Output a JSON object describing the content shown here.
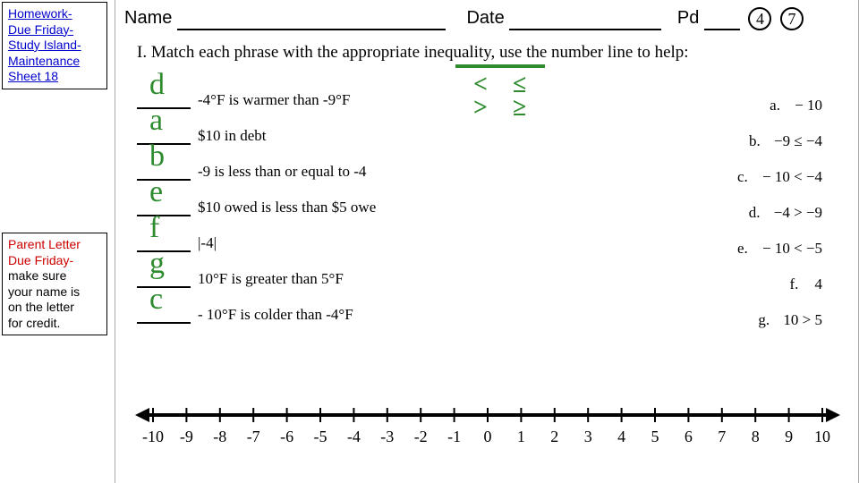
{
  "notes": {
    "top": {
      "line1": "Homework-",
      "line2": "Due Friday-",
      "line3": "Study Island-",
      "line4": "Maintenance",
      "line5": "Sheet 18"
    },
    "bottom": {
      "line1": "Parent Letter",
      "line2": "Due Friday-",
      "line3": "make sure",
      "line4": "your name is",
      "line5": "on the letter",
      "line6": "for credit."
    }
  },
  "header": {
    "name_lbl": "Name",
    "date_lbl": "Date",
    "pd_lbl": "Pd",
    "circ1": "4",
    "circ2": "7"
  },
  "instruction": "I.   Match each phrase with the appropriate inequality, use the number line to help:",
  "green_symbols": {
    "col1_a": "<",
    "col1_b": ">",
    "col2_a": "≤",
    "col2_b": "≥"
  },
  "left_items": [
    {
      "hand": "d",
      "text": "-4°F is warmer than -9°F"
    },
    {
      "hand": "a",
      "text": "$10 in debt"
    },
    {
      "hand": "b",
      "text": "-9 is less than or equal to -4"
    },
    {
      "hand": "e",
      "text": "$10 owed is less than $5 owe"
    },
    {
      "hand": "f",
      "text": "|-4|"
    },
    {
      "hand": "g",
      "text": "10°F is greater than 5°F"
    },
    {
      "hand": "c",
      "text": "- 10°F is colder than -4°F"
    }
  ],
  "right_items": [
    {
      "key": "a.",
      "val": "− 10"
    },
    {
      "key": "b.",
      "val": "−9 ≤ −4"
    },
    {
      "key": "c.",
      "val": "− 10 < −4"
    },
    {
      "key": "d.",
      "val": "−4 > −9"
    },
    {
      "key": "e.",
      "val": "− 10 < −5"
    },
    {
      "key": "f.",
      "val": "4"
    },
    {
      "key": "g.",
      "val": "10 > 5"
    }
  ],
  "numberline": {
    "min": -10,
    "max": 10,
    "step": 1,
    "labels": [
      "-10",
      "-9",
      "-8",
      "-7",
      "-6",
      "-5",
      "-4",
      "-3",
      "-2",
      "-1",
      "0",
      "1",
      "2",
      "3",
      "4",
      "5",
      "6",
      "7",
      "8",
      "9",
      "10"
    ],
    "line_width": 4,
    "font_size": 18
  },
  "colors": {
    "green": "#2e8b2e",
    "link": "#0000cc",
    "black": "#000000",
    "bg": "#ffffff"
  }
}
